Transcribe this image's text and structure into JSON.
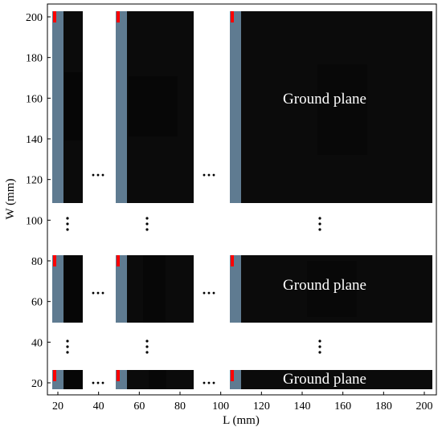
{
  "axes": {
    "x_label": "L (mm)",
    "y_label": "W (mm)",
    "x_ticks": [
      "20",
      "40",
      "60",
      "80",
      "100",
      "120",
      "140",
      "160",
      "180",
      "200"
    ],
    "y_ticks": [
      "20",
      "40",
      "60",
      "80",
      "100",
      "120",
      "140",
      "160",
      "180",
      "200"
    ]
  },
  "panel_label": "Ground plane",
  "ellipsis_horizontal": "···",
  "colors": {
    "ground_plane": "#0b0b0b",
    "ground_plane_shade": "#050505",
    "substrate_strip": "#5f7b91",
    "feed": "#ff0000",
    "frame": "#000000"
  }
}
